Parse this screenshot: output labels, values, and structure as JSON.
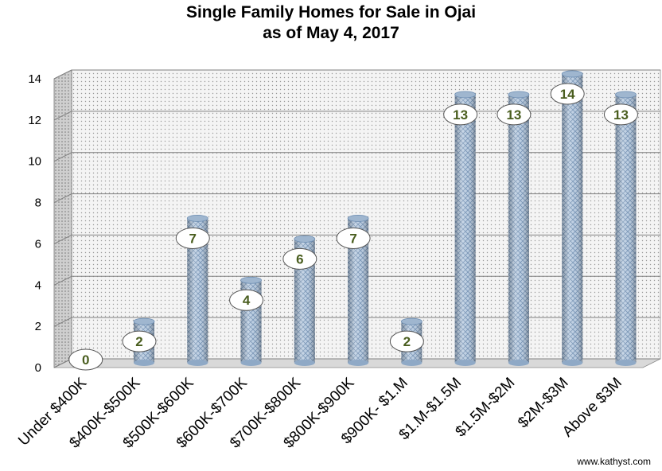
{
  "chart_data": {
    "type": "bar",
    "title": "Single Family Homes for Sale in Ojai",
    "subtitle": "as of May 4, 2017",
    "categories": [
      "Under $400K",
      "$400K-$500K",
      "$500K-$600K",
      "$600K-$700K",
      "$700K-$800K",
      "$800K-$900K",
      "$900K- $1.M",
      "$1.M-$1.5M",
      "$1.5M-$2M",
      "$2M-$3M",
      "Above $3M"
    ],
    "values": [
      0,
      2,
      7,
      4,
      6,
      7,
      2,
      13,
      13,
      14,
      13
    ],
    "data_labels": [
      "0",
      "2",
      "7",
      "4",
      "6",
      "7",
      "2",
      "13",
      "13",
      "14",
      "13"
    ],
    "yticks": [
      "0",
      "2",
      "4",
      "6",
      "8",
      "10",
      "12",
      "14"
    ],
    "ylim": [
      0,
      14
    ],
    "xlabel": "",
    "ylabel": "",
    "grid": true,
    "legend": "none",
    "colors": {
      "bar": "#a9c0d8",
      "bar_edge": "#6f8fb3",
      "label_text": "#4a5e1f",
      "grid": "#7f7f7f",
      "wall": "#f3f3f3"
    }
  },
  "watermark": "www.kathyst.com"
}
